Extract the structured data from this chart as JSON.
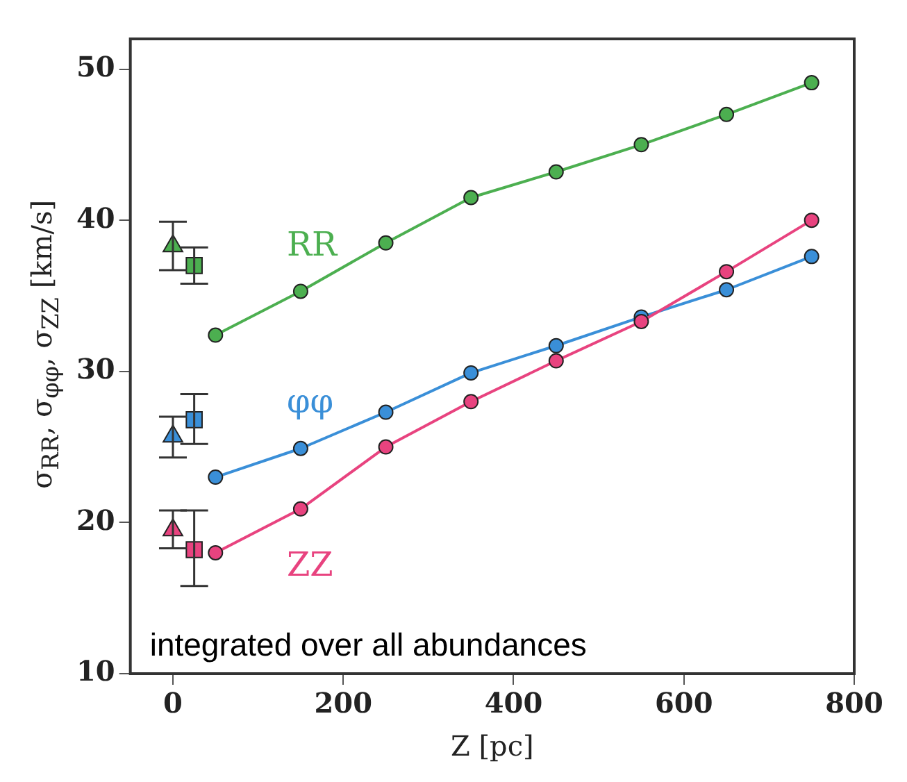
{
  "chart_data": {
    "type": "line",
    "xlabel": "Z [pc]",
    "ylabel": "σ$_{RR}$, σ$_{φφ}$, σ$_{ZZ}$ [km/s]",
    "annotations": [
      "integrated over all abundances"
    ],
    "xlim": [
      -50,
      800
    ],
    "xticks": [
      0,
      200,
      400,
      600,
      800
    ],
    "ylim": [
      10,
      52
    ],
    "yticks": [
      10,
      20,
      30,
      40,
      50
    ],
    "grid": false,
    "legend": false,
    "marker": "circle",
    "series": [
      {
        "name": "RR",
        "type": "line",
        "color": "#4caf50",
        "x": [
          50,
          150,
          250,
          350,
          450,
          550,
          650,
          750
        ],
        "values": [
          32.4,
          35.3,
          38.5,
          41.5,
          43.2,
          45.0,
          47.0,
          49.1
        ]
      },
      {
        "name": "φφ",
        "type": "line",
        "color": "#3a8fd8",
        "x": [
          50,
          150,
          250,
          350,
          450,
          550,
          650,
          750
        ],
        "values": [
          23.0,
          24.9,
          27.3,
          29.9,
          31.7,
          33.6,
          35.4,
          37.6
        ]
      },
      {
        "name": "ZZ",
        "type": "line",
        "color": "#e8437f",
        "x": [
          50,
          150,
          250,
          350,
          450,
          550,
          650,
          750
        ],
        "values": [
          18.0,
          20.9,
          25.0,
          28.0,
          30.7,
          33.3,
          36.6,
          40.0
        ]
      },
      {
        "type": "scatter",
        "marker": "triangle",
        "color": "#4caf50",
        "x": [
          0
        ],
        "values": [
          38.3
        ],
        "errors": [
          [
            36.7,
            39.9
          ]
        ]
      },
      {
        "type": "scatter",
        "marker": "triangle",
        "color": "#3a8fd8",
        "x": [
          0
        ],
        "values": [
          25.7
        ],
        "errors": [
          [
            24.3,
            27.0
          ]
        ]
      },
      {
        "type": "scatter",
        "marker": "triangle",
        "color": "#e8437f",
        "x": [
          0
        ],
        "values": [
          19.5
        ],
        "errors": [
          [
            18.3,
            20.8
          ]
        ]
      },
      {
        "type": "scatter",
        "marker": "square",
        "color": "#4caf50",
        "x": [
          25
        ],
        "values": [
          37.0
        ],
        "errors": [
          [
            35.8,
            38.2
          ]
        ]
      },
      {
        "type": "scatter",
        "marker": "square",
        "color": "#3a8fd8",
        "x": [
          25
        ],
        "values": [
          26.8
        ],
        "errors": [
          [
            25.2,
            28.5
          ]
        ]
      },
      {
        "type": "scatter",
        "marker": "square",
        "color": "#e8437f",
        "x": [
          25
        ],
        "values": [
          18.2
        ],
        "errors": [
          [
            15.8,
            20.8
          ]
        ]
      }
    ]
  }
}
